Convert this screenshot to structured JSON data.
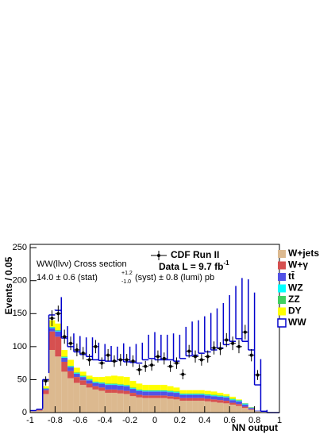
{
  "chart_data": {
    "type": "histogram",
    "xlabel": "NN output",
    "ylabel": "Events / 0.05",
    "annotations": {
      "cross_section": "WW(llνν) Cross section",
      "measurement": {
        "main": "14.0 ± 0.6 (stat)",
        "up": "+1.2",
        "down": "-1.0",
        "rest": "(syst) ± 0.8 (lumi) pb"
      },
      "lumi": {
        "main": "Data L = 9.7 fb",
        "sup": "-1"
      }
    },
    "bins": [
      -1,
      -0.95,
      -0.9,
      -0.85,
      -0.8,
      -0.75,
      -0.7,
      -0.65,
      -0.6,
      -0.55,
      -0.5,
      -0.45,
      -0.4,
      -0.35,
      -0.3,
      -0.25,
      -0.2,
      -0.15,
      -0.1,
      -0.05,
      0,
      0.05,
      0.1,
      0.15,
      0.2,
      0.25,
      0.3,
      0.35,
      0.4,
      0.45,
      0.5,
      0.55,
      0.6,
      0.65,
      0.7,
      0.75,
      0.8,
      0.85,
      0.9,
      0.95,
      1
    ],
    "stacked": true,
    "series": [
      {
        "name": "W+jets",
        "color": "#dcb98f",
        "values": [
          2,
          3,
          28,
          95,
          85,
          62,
          52,
          45,
          42,
          38,
          35,
          33,
          30,
          30,
          29,
          28,
          25,
          23,
          22,
          22,
          22,
          22,
          21,
          20,
          18,
          18,
          18,
          18,
          17,
          16,
          15,
          14,
          12,
          10,
          7,
          4,
          2,
          0,
          0,
          0
        ]
      },
      {
        "name": "W+γ",
        "color": "#d65050",
        "values": [
          0,
          1,
          6,
          28,
          30,
          15,
          11,
          9,
          7,
          6,
          5,
          5,
          5,
          5,
          5,
          5,
          5,
          4,
          4,
          4,
          4,
          4,
          4,
          4,
          4,
          4,
          4,
          4,
          4,
          4,
          4,
          4,
          3,
          3,
          2,
          1,
          0,
          0,
          0,
          0
        ]
      },
      {
        "name": "tt̄",
        "color": "#5252e6",
        "values": [
          0,
          0,
          2,
          5,
          8,
          6,
          6,
          5,
          5,
          5,
          5,
          6,
          7,
          7,
          7,
          7,
          6,
          6,
          6,
          6,
          6,
          6,
          6,
          6,
          5,
          5,
          5,
          5,
          5,
          5,
          5,
          5,
          4,
          4,
          3,
          2,
          1,
          0,
          0,
          0
        ]
      },
      {
        "name": "WZ",
        "color": "#00ffff",
        "values": [
          0,
          0,
          0,
          1,
          1,
          1,
          1,
          1,
          1,
          1,
          1,
          1,
          1,
          1,
          1,
          1,
          1,
          1,
          1,
          1,
          1,
          1,
          1,
          1,
          1,
          1,
          1,
          1,
          1,
          1,
          1,
          1,
          1,
          1,
          1,
          0,
          0,
          0,
          0,
          0
        ]
      },
      {
        "name": "ZZ",
        "color": "#40d060",
        "values": [
          0,
          0,
          1,
          1,
          1,
          1,
          1,
          1,
          1,
          1,
          1,
          1,
          1,
          1,
          1,
          1,
          1,
          1,
          1,
          1,
          1,
          1,
          1,
          1,
          1,
          1,
          1,
          1,
          1,
          1,
          1,
          1,
          1,
          1,
          1,
          1,
          0,
          0,
          0,
          0
        ]
      },
      {
        "name": "DY",
        "color": "#ffff00",
        "values": [
          0,
          0,
          3,
          10,
          10,
          10,
          9,
          7,
          6,
          5,
          7,
          8,
          11,
          12,
          12,
          12,
          10,
          9,
          8,
          8,
          8,
          8,
          7,
          6,
          5,
          5,
          5,
          5,
          5,
          5,
          4,
          3,
          3,
          1,
          0,
          0,
          0,
          0,
          0,
          0
        ]
      },
      {
        "name": "WW",
        "color": "#0000cc",
        "outline": true,
        "values": [
          1,
          1,
          10,
          8,
          20,
          18,
          20,
          24,
          26,
          29,
          26,
          25,
          23,
          22,
          25,
          23,
          28,
          31,
          38,
          40,
          38,
          38,
          40,
          40,
          48,
          52,
          53,
          56,
          59,
          63,
          68,
          75,
          84,
          92,
          94,
          87,
          39,
          2,
          0,
          0
        ]
      }
    ],
    "data": {
      "name": "CDF Run II",
      "color": "#000000",
      "x": [
        -0.875,
        -0.825,
        -0.775,
        -0.725,
        -0.675,
        -0.625,
        -0.575,
        -0.525,
        -0.475,
        -0.425,
        -0.375,
        -0.325,
        -0.275,
        -0.225,
        -0.175,
        -0.125,
        -0.075,
        -0.025,
        0.025,
        0.075,
        0.125,
        0.175,
        0.225,
        0.275,
        0.325,
        0.375,
        0.425,
        0.475,
        0.525,
        0.575,
        0.625,
        0.675,
        0.725,
        0.775,
        0.825
      ],
      "values": [
        48,
        143,
        150,
        115,
        105,
        95,
        90,
        80,
        100,
        75,
        87,
        78,
        80,
        80,
        78,
        65,
        70,
        72,
        85,
        82,
        70,
        75,
        58,
        93,
        85,
        80,
        85,
        98,
        97,
        110,
        105,
        100,
        122,
        87,
        57
      ],
      "errors": [
        6.9,
        12,
        12.2,
        10.7,
        10.2,
        9.7,
        9.5,
        8.9,
        10,
        8.7,
        9.3,
        8.8,
        8.9,
        8.9,
        8.8,
        8.1,
        8.4,
        8.5,
        9.2,
        9.1,
        8.4,
        8.7,
        7.6,
        9.6,
        9.2,
        8.9,
        9.2,
        9.9,
        9.8,
        10.5,
        10.2,
        10,
        11,
        9.3,
        7.5
      ]
    },
    "xlim": [
      -1,
      1
    ],
    "ylim": [
      0,
      255
    ],
    "xticks": [
      -1,
      -0.8,
      -0.6,
      -0.4,
      -0.2,
      0,
      0.2,
      0.4,
      0.6,
      0.8,
      1
    ],
    "yticks": [
      0,
      50,
      100,
      150,
      200,
      250
    ],
    "legend": "right"
  }
}
